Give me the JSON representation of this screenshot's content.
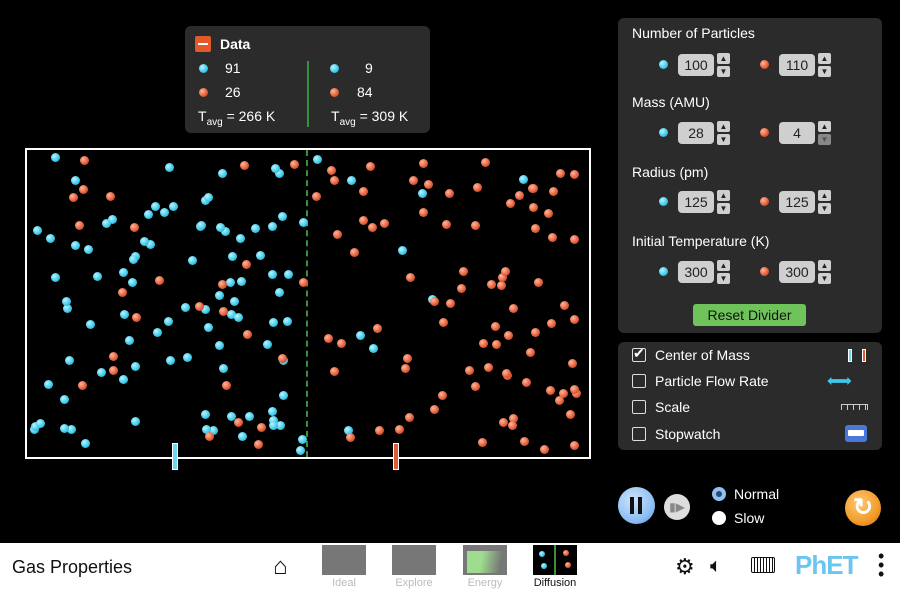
{
  "data_panel": {
    "title": "Data",
    "left": {
      "blue_count": "91",
      "red_count": "26",
      "tavg": "= 266 K"
    },
    "right": {
      "blue_count": "9",
      "red_count": "84",
      "tavg": "= 309 K"
    },
    "tavg_symbol": "T",
    "tavg_sub": "avg"
  },
  "controls": {
    "number_of_particles": {
      "label": "Number of Particles",
      "blue": "100",
      "red": "110"
    },
    "mass": {
      "label": "Mass (AMU)",
      "blue": "28",
      "red": "4"
    },
    "radius": {
      "label": "Radius (pm)",
      "blue": "125",
      "red": "125"
    },
    "initial_temperature": {
      "label": "Initial Temperature (K)",
      "blue": "300",
      "red": "300"
    },
    "reset_divider": "Reset Divider"
  },
  "options": [
    {
      "label": "Center of Mass",
      "checked": true
    },
    {
      "label": "Particle Flow Rate",
      "checked": false
    },
    {
      "label": "Scale",
      "checked": false
    },
    {
      "label": "Stopwatch",
      "checked": false
    }
  ],
  "sim_speed": {
    "options": [
      "Normal",
      "Slow"
    ],
    "selected": "Normal"
  },
  "colors": {
    "blue_particle": "#3cc8e8",
    "red_particle": "#e05a35",
    "divider": "#3a8f3a",
    "reset_button": "#6ec35b",
    "reset_all": "#f39c2b",
    "play_pause": "#8fc1f5"
  },
  "particles": {
    "left_blue": 91,
    "left_red": 26,
    "right_blue": 9,
    "right_red": 84
  },
  "navbar": {
    "title": "Gas Properties",
    "screens": [
      "Ideal",
      "Explore",
      "Energy",
      "Diffusion"
    ],
    "selected": "Diffusion",
    "logo": "PhET"
  }
}
